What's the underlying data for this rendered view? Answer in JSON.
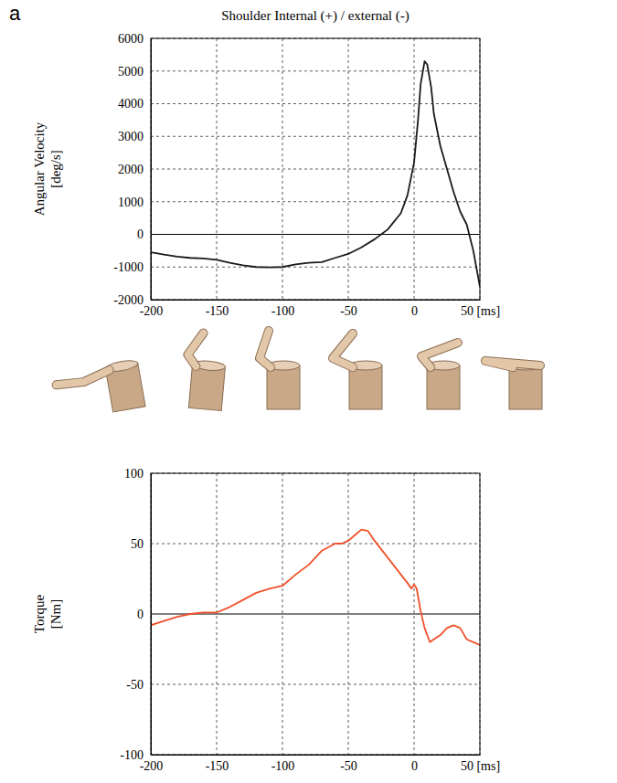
{
  "chart_data": [
    {
      "type": "line",
      "panel_label": "a",
      "title": "Shoulder Internal (+) / external (-)",
      "y_label": "Angular Velocity [deg/s]",
      "x": [
        -200,
        -190,
        -180,
        -170,
        -160,
        -150,
        -140,
        -130,
        -120,
        -110,
        -100,
        -90,
        -80,
        -70,
        -60,
        -50,
        -40,
        -30,
        -20,
        -10,
        -5,
        0,
        3,
        5,
        8,
        10,
        13,
        15,
        20,
        25,
        30,
        35,
        40,
        45,
        50
      ],
      "series": [
        {
          "color": "#1a1a1a",
          "values": [
            -550,
            -620,
            -680,
            -720,
            -740,
            -780,
            -870,
            -950,
            -1000,
            -1010,
            -1000,
            -920,
            -870,
            -850,
            -720,
            -600,
            -400,
            -150,
            150,
            650,
            1200,
            2200,
            3500,
            4600,
            5300,
            5200,
            4500,
            3700,
            2700,
            2000,
            1300,
            700,
            300,
            -500,
            -1600
          ]
        }
      ],
      "xlim": [
        -200,
        50
      ],
      "xticks": [
        -200,
        -150,
        -100,
        -50,
        0,
        {
          "value": 50,
          "label": "50 [ms]"
        }
      ],
      "ylim": [
        -2000,
        6000
      ],
      "yticks": [
        -2000,
        -1000,
        0,
        1000,
        2000,
        3000,
        4000,
        5000,
        6000
      ],
      "grid": true
    },
    {
      "type": "line",
      "y_label": "Torque [Nm]",
      "x": [
        -200,
        -190,
        -180,
        -170,
        -160,
        -150,
        -140,
        -130,
        -120,
        -110,
        -100,
        -90,
        -80,
        -70,
        -60,
        -55,
        -50,
        -45,
        -40,
        -35,
        -30,
        -20,
        -10,
        -5,
        -2,
        0,
        2,
        5,
        8,
        12,
        15,
        20,
        25,
        30,
        35,
        40,
        45,
        50
      ],
      "series": [
        {
          "color": "#f0502a",
          "values": [
            -8,
            -5,
            -2,
            0,
            1,
            1,
            5,
            10,
            15,
            18,
            20,
            28,
            35,
            45,
            50,
            50,
            52,
            56,
            60,
            59,
            52,
            40,
            28,
            22,
            18,
            21,
            18,
            2,
            -10,
            -20,
            -18,
            -15,
            -10,
            -8,
            -10,
            -18,
            -20,
            -22
          ]
        }
      ],
      "xlim": [
        -200,
        50
      ],
      "xticks": [
        -200,
        -150,
        -100,
        -50,
        0,
        {
          "value": 50,
          "label": "50 [ms]"
        }
      ],
      "ylim": [
        -100,
        100
      ],
      "yticks": [
        -100,
        -50,
        0,
        50,
        100
      ],
      "grid": true
    }
  ]
}
